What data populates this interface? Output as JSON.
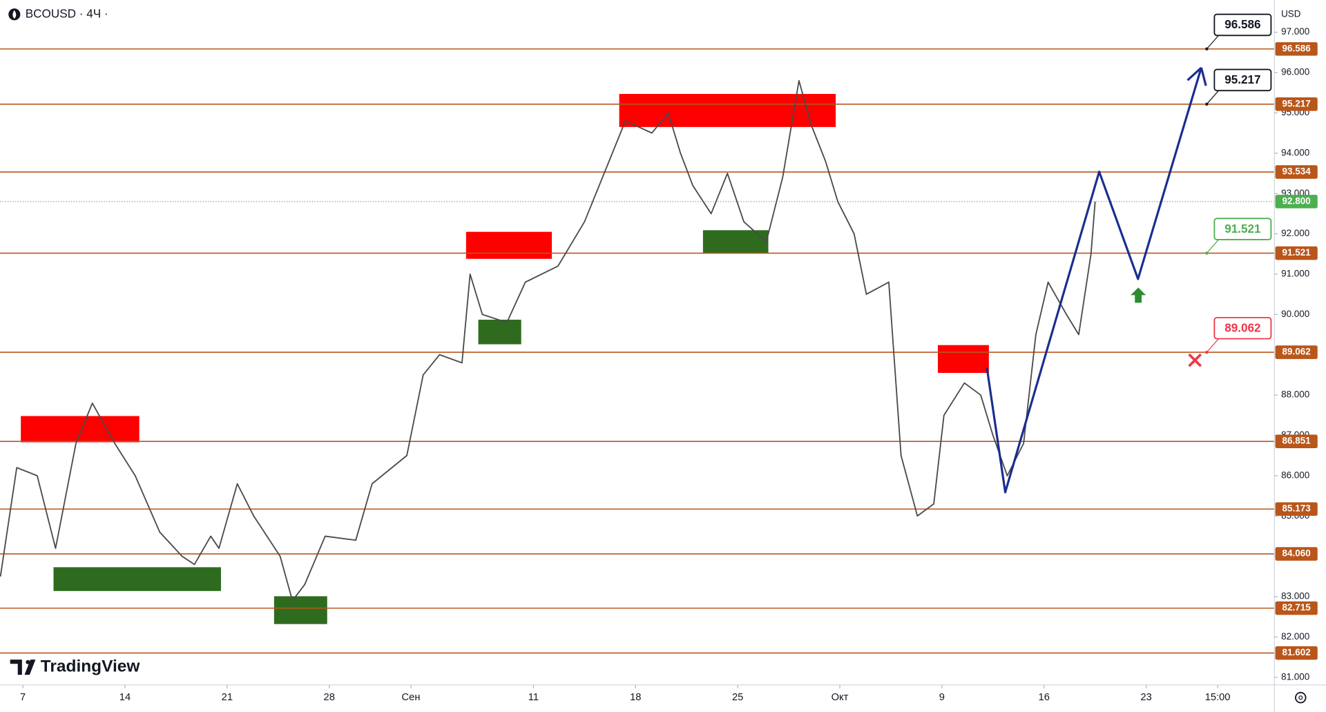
{
  "chart_data": {
    "type": "line",
    "symbol_label": "BCOUSD · 4Ч ·",
    "currency": "USD",
    "brand": "TradingView",
    "xlim": [
      -1.12,
      61.28
    ],
    "ylim": [
      80.81,
      97.8
    ],
    "xticks": [
      {
        "value": 0,
        "label": "7"
      },
      {
        "value": 5,
        "label": "14"
      },
      {
        "value": 10,
        "label": "21"
      },
      {
        "value": 15,
        "label": "28"
      },
      {
        "value": 19,
        "label": "Сен"
      },
      {
        "value": 25,
        "label": "11"
      },
      {
        "value": 30,
        "label": "18"
      },
      {
        "value": 35,
        "label": "25"
      },
      {
        "value": 40,
        "label": "Окт"
      },
      {
        "value": 45,
        "label": "9"
      },
      {
        "value": 50,
        "label": "16"
      },
      {
        "value": 55,
        "label": "23"
      },
      {
        "value": 58.5,
        "label": "15:00"
      }
    ],
    "yticks": [
      {
        "value": 81,
        "label": "81.000"
      },
      {
        "value": 82,
        "label": "82.000"
      },
      {
        "value": 83,
        "label": "83.000"
      },
      {
        "value": 84,
        "label": "84.000"
      },
      {
        "value": 85,
        "label": "85.000"
      },
      {
        "value": 86,
        "label": "86.000"
      },
      {
        "value": 87,
        "label": "87.000"
      },
      {
        "value": 88,
        "label": "88.000"
      },
      {
        "value": 89,
        "label": "89.000"
      },
      {
        "value": 90,
        "label": "90.000"
      },
      {
        "value": 91,
        "label": "91.000"
      },
      {
        "value": 92,
        "label": "92.000"
      },
      {
        "value": 93,
        "label": "93.000"
      },
      {
        "value": 94,
        "label": "94.000"
      },
      {
        "value": 95,
        "label": "95.000"
      },
      {
        "value": 96,
        "label": "96.000"
      },
      {
        "value": 97,
        "label": "97.000"
      }
    ],
    "levels": {
      "color": "#b9561a",
      "values": [
        96.586,
        95.217,
        93.534,
        91.521,
        89.062,
        86.851,
        85.173,
        84.06,
        82.715,
        81.602
      ],
      "value_labels": [
        "96.586",
        "95.217",
        "93.534",
        "91.521",
        "89.062",
        "86.851",
        "85.173",
        "84.060",
        "82.715",
        "81.602"
      ]
    },
    "current_price": {
      "value": 92.8,
      "label": "92.800",
      "color": "#4caf50"
    },
    "callouts": [
      {
        "value": 96.586,
        "color": "#131722"
      },
      {
        "value": 95.217,
        "color": "#131722"
      },
      {
        "value": 91.521,
        "color": "#4caf50"
      },
      {
        "value": 89.062,
        "color": "#f23645"
      }
    ],
    "price": {
      "color": "#4a4a4a",
      "x": [
        -1.1,
        -0.3,
        0.7,
        1.6,
        2.6,
        3.4,
        4.5,
        5.5,
        6.7,
        7.8,
        8.4,
        9.2,
        9.6,
        10.5,
        11.3,
        12.6,
        13.2,
        13.8,
        14.8,
        16.3,
        17.1,
        18.8,
        19.6,
        20.4,
        21.5,
        21.9,
        22.5,
        23.7,
        24.6,
        26.2,
        27.5,
        28.7,
        29.5,
        30.8,
        31.6,
        32.2,
        32.8,
        33.7,
        34.5,
        35.3,
        36.4,
        37.2,
        38.0,
        38.6,
        39.3,
        39.9,
        40.7,
        41.3,
        42.4,
        43.0,
        43.8,
        44.6,
        45.1,
        46.1,
        46.9,
        47.5,
        48.2,
        49.0,
        49.6,
        50.2,
        51.1,
        51.7,
        52.3,
        52.5
      ],
      "values": [
        83.5,
        86.2,
        86.0,
        84.2,
        86.8,
        87.8,
        86.8,
        86.0,
        84.6,
        84.0,
        83.8,
        84.5,
        84.2,
        85.8,
        85.0,
        84.0,
        82.9,
        83.3,
        84.5,
        84.4,
        85.8,
        86.5,
        88.5,
        89.0,
        88.8,
        91.0,
        90.0,
        89.8,
        90.8,
        91.2,
        92.3,
        93.8,
        94.8,
        94.5,
        95.0,
        94.0,
        93.2,
        92.5,
        93.5,
        92.3,
        91.8,
        93.4,
        95.8,
        94.7,
        93.8,
        92.8,
        92.0,
        90.5,
        90.8,
        86.5,
        85.0,
        85.3,
        87.5,
        88.3,
        88.0,
        87.0,
        86.0,
        86.8,
        89.5,
        90.8,
        90.0,
        89.5,
        91.5,
        92.8
      ]
    },
    "forecast": {
      "color": "#1a2e8f",
      "x": [
        47.2,
        48.1,
        52.7,
        54.6,
        57.7
      ],
      "values": [
        88.68,
        85.59,
        93.54,
        90.88,
        96.12
      ]
    },
    "zones": [
      {
        "color": "#ff0000",
        "x": [
          -0.1,
          5.7
        ],
        "values": [
          86.83,
          87.48
        ]
      },
      {
        "color": "#2e6b1e",
        "x": [
          1.5,
          9.7
        ],
        "values": [
          83.14,
          83.73
        ]
      },
      {
        "color": "#2e6b1e",
        "x": [
          12.3,
          14.9
        ],
        "values": [
          82.32,
          83.01
        ]
      },
      {
        "color": "#ff0000",
        "x": [
          21.7,
          25.9
        ],
        "values": [
          91.38,
          92.05
        ]
      },
      {
        "color": "#2e6b1e",
        "x": [
          22.3,
          24.4
        ],
        "values": [
          89.26,
          89.87
        ]
      },
      {
        "color": "#ff0000",
        "x": [
          29.2,
          39.8
        ],
        "values": [
          94.65,
          95.47
        ]
      },
      {
        "color": "#2e6b1e",
        "x": [
          33.3,
          36.5
        ],
        "values": [
          91.51,
          92.09
        ]
      },
      {
        "color": "#ff0000",
        "x": [
          44.8,
          47.3
        ],
        "values": [
          88.55,
          89.24
        ]
      }
    ]
  }
}
